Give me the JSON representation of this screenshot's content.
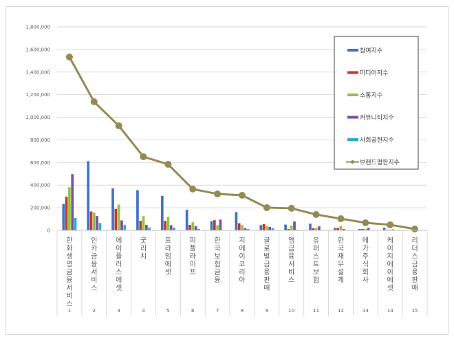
{
  "chart_data": {
    "type": "bar",
    "title": "",
    "xlabel": "",
    "ylabel": "",
    "ylim": [
      0,
      1800000
    ],
    "yticks": [
      0,
      200000,
      400000,
      600000,
      800000,
      1000000,
      1200000,
      1400000,
      1600000,
      1800000
    ],
    "ytick_labels": [
      "0",
      "200,000",
      "400,000",
      "600,000",
      "800,000",
      "1,000,000",
      "1,200,000",
      "1,400,000",
      "1,600,000",
      "1,800,000"
    ],
    "grid": true,
    "legend_position": "top-right",
    "rank_labels": [
      "1",
      "2",
      "3",
      "4",
      "5",
      "6",
      "7",
      "8",
      "9",
      "10",
      "11",
      "12",
      "13",
      "14",
      "15"
    ],
    "categories": [
      "한화생명금융서비스",
      "인카금융서비스",
      "에이플러스에셋",
      "굿리치",
      "프라임에셋",
      "피플라이프",
      "한국보험금융",
      "지에이코리아",
      "글로벌금융판매",
      "엠금융서비스",
      "유퍼스트보험",
      "한국재무설계",
      "메가주식회사",
      "케이지에이에셋",
      "리더스금융판매"
    ],
    "series": [
      {
        "name": "참여지수",
        "type": "bar",
        "color": "#4472c4",
        "values": [
          234000,
          612000,
          371000,
          355000,
          304000,
          182000,
          81000,
          161000,
          47000,
          51000,
          59000,
          22000,
          12000,
          24000,
          3000
        ]
      },
      {
        "name": "미디어지수",
        "type": "bar",
        "color": "#c0392b",
        "values": [
          298000,
          167000,
          190000,
          84000,
          84000,
          49000,
          90000,
          63000,
          55000,
          12000,
          20000,
          22000,
          12000,
          6000,
          2000
        ]
      },
      {
        "name": "소통지수",
        "type": "bar",
        "color": "#8dc63f",
        "values": [
          381000,
          157000,
          228000,
          126000,
          120000,
          72000,
          45000,
          47000,
          37000,
          43000,
          20000,
          39000,
          12000,
          6000,
          2000
        ]
      },
      {
        "name": "커뮤니티지수",
        "type": "bar",
        "color": "#7a4fa6",
        "values": [
          497000,
          127000,
          88000,
          49000,
          45000,
          37000,
          95000,
          18000,
          31000,
          78000,
          35000,
          12000,
          22000,
          8000,
          3000
        ]
      },
      {
        "name": "사회공헌지수",
        "type": "bar",
        "color": "#2eaad1",
        "values": [
          110000,
          65000,
          47000,
          26000,
          24000,
          14000,
          3000,
          12000,
          18000,
          6000,
          3000,
          4000,
          3000,
          2000,
          1000
        ]
      },
      {
        "name": "브랜드평판지수",
        "type": "line",
        "color": "#948a54",
        "values": [
          1533000,
          1137000,
          925000,
          651000,
          584000,
          365000,
          322000,
          310000,
          201000,
          195000,
          140000,
          103000,
          67000,
          49000,
          12000
        ]
      }
    ]
  }
}
